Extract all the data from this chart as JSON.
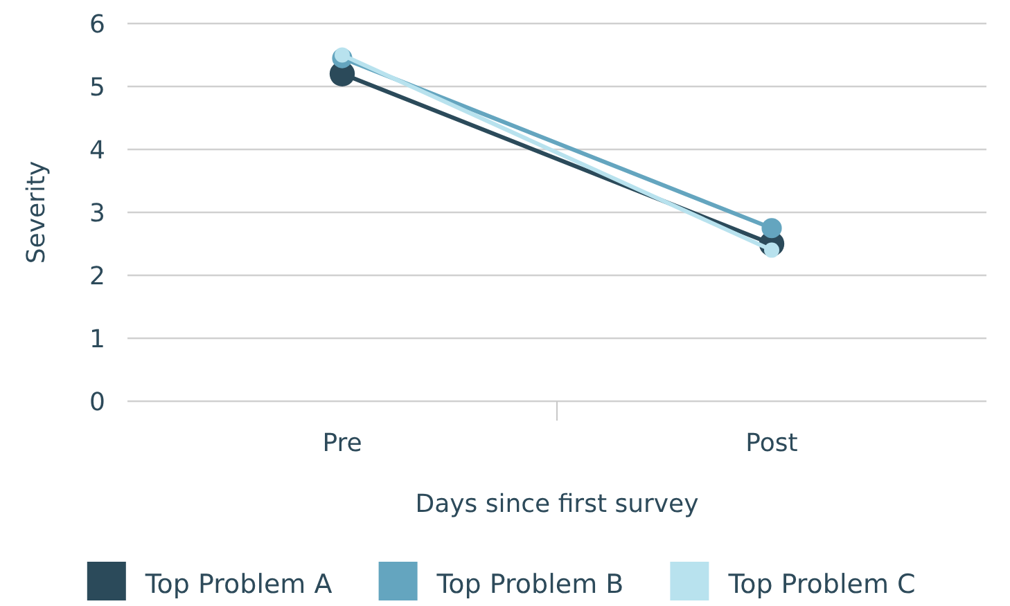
{
  "chart_data": {
    "type": "line",
    "xlabel": "Days since first survey",
    "ylabel": "Severity",
    "categories": [
      "Pre",
      "Post"
    ],
    "ylim": [
      0,
      6
    ],
    "yticks": [
      0,
      1,
      2,
      3,
      4,
      5,
      6
    ],
    "grid": "y",
    "legend": "bottom",
    "marker": "circle",
    "line_style": "solid",
    "series": [
      {
        "name": "Top Problem A",
        "color": "#2b4a5a",
        "values": [
          5.2,
          2.5
        ]
      },
      {
        "name": "Top Problem B",
        "color": "#64a5bf",
        "values": [
          5.45,
          2.75
        ]
      },
      {
        "name": "Top Problem C",
        "color": "#b8e2ee",
        "values": [
          5.5,
          2.4
        ]
      }
    ]
  }
}
